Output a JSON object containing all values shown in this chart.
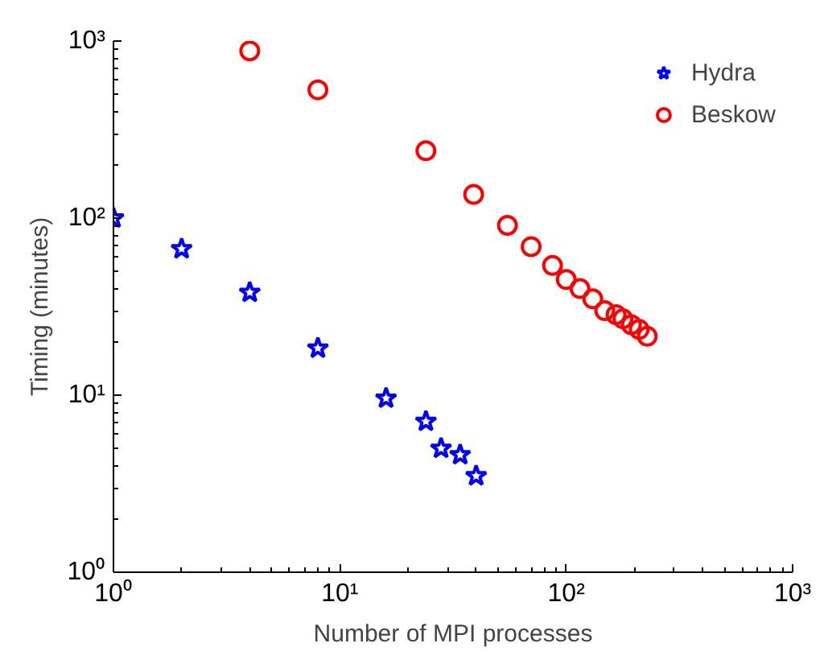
{
  "chart_data": {
    "type": "scatter",
    "xlabel": "Number of MPI processes",
    "ylabel": "Timing (minutes)",
    "log": "xy",
    "grid": false,
    "legend": "top right",
    "xlim": [
      1,
      1000
    ],
    "ylim": [
      1,
      1000
    ],
    "xticks": [
      {
        "value": 1,
        "label": "10⁰"
      },
      {
        "value": 10,
        "label": "10¹"
      },
      {
        "value": 100,
        "label": "10²"
      },
      {
        "value": 1000,
        "label": "10³"
      }
    ],
    "yticks": [
      {
        "value": 1,
        "label": "10⁰"
      },
      {
        "value": 10,
        "label": "10¹"
      },
      {
        "value": 100,
        "label": "10²"
      },
      {
        "value": 1000,
        "label": "10³"
      }
    ],
    "series": [
      {
        "name": "Hydra",
        "color": "#0000ff",
        "marker": "star",
        "x": [
          1,
          2,
          4,
          8,
          16,
          24,
          28,
          34,
          40
        ],
        "values": [
          100,
          67,
          38,
          18.4,
          9.6,
          7.1,
          5.0,
          4.6,
          3.5
        ]
      },
      {
        "name": "Beskow",
        "color": "#ff0000",
        "marker": "circle",
        "x": [
          4,
          8,
          24,
          39,
          55,
          70,
          87,
          100,
          115,
          131,
          148,
          166,
          178,
          194,
          210,
          228
        ],
        "values": [
          880,
          530,
          240,
          136,
          91,
          69,
          54,
          45,
          40,
          35,
          30,
          28.5,
          27,
          25,
          23.5,
          21.5
        ]
      }
    ]
  }
}
